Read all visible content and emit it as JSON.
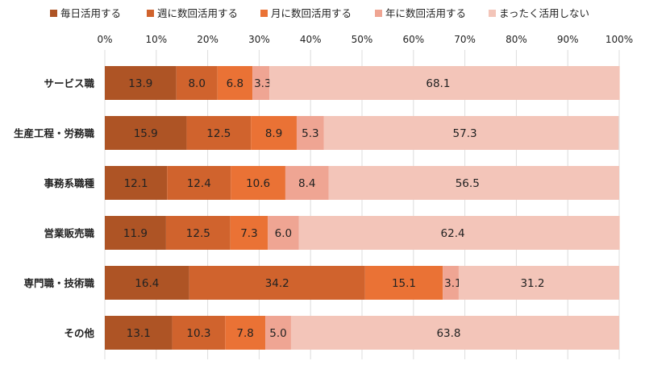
{
  "chart_data": {
    "type": "bar",
    "orientation": "horizontal",
    "stacked": true,
    "categories": [
      "サービス職",
      "生産工程・労務職",
      "事務系職種",
      "営業販売職",
      "専門職・技術職",
      "その他"
    ],
    "series": [
      {
        "name": "毎日活用する",
        "color": "#AE5425",
        "values": [
          13.9,
          15.9,
          12.1,
          11.9,
          16.4,
          13.1
        ]
      },
      {
        "name": "週に数回活用する",
        "color": "#D0632D",
        "values": [
          8.0,
          12.5,
          12.4,
          12.5,
          34.2,
          10.3
        ]
      },
      {
        "name": "月に数回活用する",
        "color": "#EA7235",
        "values": [
          6.8,
          8.9,
          10.6,
          7.3,
          15.1,
          7.8
        ]
      },
      {
        "name": "年に数回活用する",
        "color": "#EFA593",
        "values": [
          3.3,
          5.3,
          8.4,
          6.0,
          3.1,
          5.0
        ]
      },
      {
        "name": "まったく活用しない",
        "color": "#F3C5B9",
        "values": [
          68.1,
          57.3,
          56.5,
          62.4,
          31.2,
          63.8
        ]
      }
    ],
    "xlim": [
      0,
      100
    ],
    "x_ticks": [
      "0%",
      "10%",
      "20%",
      "30%",
      "40%",
      "50%",
      "60%",
      "70%",
      "80%",
      "90%",
      "100%"
    ],
    "x_axis_position": "top",
    "grid": true,
    "legend_position": "top",
    "title": "",
    "xlabel": "",
    "ylabel": ""
  }
}
